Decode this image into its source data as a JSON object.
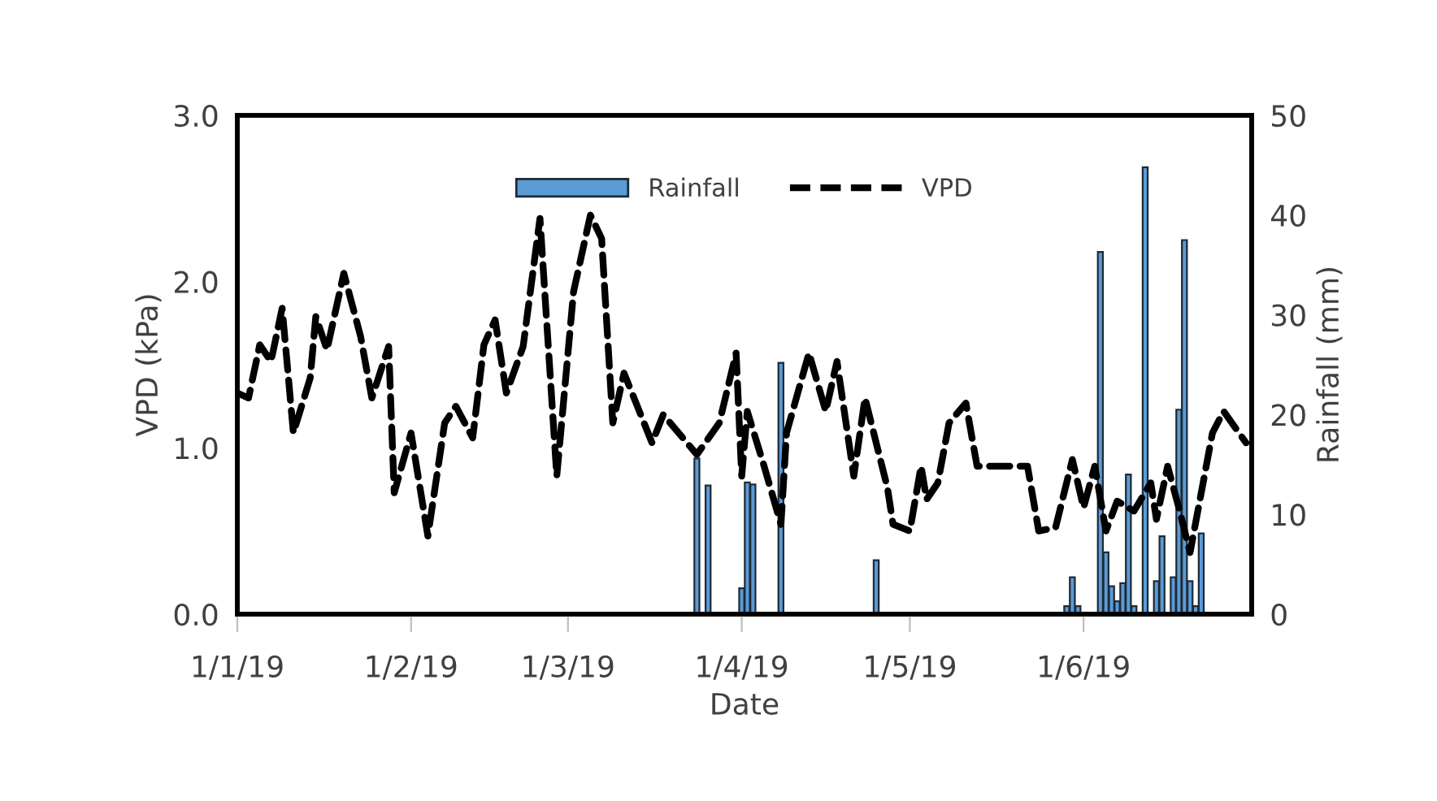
{
  "chart_data": {
    "type": "line",
    "xlabel": "Date",
    "ylabel": "VPD (kPa)",
    "y2label": "Rainfall (mm)",
    "xlim": [
      "2019-01-01",
      "2019-07-01"
    ],
    "xticks": [
      {
        "value": "2019-01-01",
        "label": "1/1/19"
      },
      {
        "value": "2019-02-01",
        "label": "1/2/19"
      },
      {
        "value": "2019-03-01",
        "label": "1/3/19"
      },
      {
        "value": "2019-04-01",
        "label": "1/4/19"
      },
      {
        "value": "2019-05-01",
        "label": "1/5/19"
      },
      {
        "value": "2019-06-01",
        "label": "1/6/19"
      }
    ],
    "ylim": [
      0,
      3
    ],
    "yticks": [
      {
        "value": 0,
        "label": "0.0"
      },
      {
        "value": 1,
        "label": "1.0"
      },
      {
        "value": 2,
        "label": "2.0"
      },
      {
        "value": 3,
        "label": "3.0"
      }
    ],
    "y2lim": [
      0,
      50
    ],
    "y2ticks": [
      0,
      10,
      20,
      30,
      40,
      50
    ],
    "grid": false,
    "legend": "top",
    "series": [
      {
        "name": "Rainfall",
        "type": "bar",
        "axis": "y2",
        "color": "#5b9bd5",
        "x": [
          "2019-03-24",
          "2019-03-26",
          "2019-04-01",
          "2019-04-02",
          "2019-04-03",
          "2019-04-08",
          "2019-04-25",
          "2019-05-29",
          "2019-05-30",
          "2019-05-31",
          "2019-06-04",
          "2019-06-05",
          "2019-06-06",
          "2019-06-07",
          "2019-06-08",
          "2019-06-09",
          "2019-06-10",
          "2019-06-12",
          "2019-06-14",
          "2019-06-15",
          "2019-06-17",
          "2019-06-18",
          "2019-06-19",
          "2019-06-20",
          "2019-06-21",
          "2019-06-22"
        ],
        "values": [
          15.6,
          12.9,
          2.6,
          13.2,
          13.0,
          25.2,
          5.4,
          0.8,
          3.7,
          0.8,
          36.3,
          6.2,
          2.8,
          1.3,
          3.1,
          14.0,
          0.8,
          44.8,
          3.3,
          7.8,
          3.7,
          20.5,
          37.5,
          3.3,
          0.8,
          8.1
        ]
      },
      {
        "name": "VPD",
        "axis": "y",
        "color": "#000000",
        "line_style": "dashed",
        "marker": "none",
        "x": [
          "2019-01-01",
          "2019-01-03",
          "2019-01-05",
          "2019-01-07",
          "2019-01-09",
          "2019-01-11",
          "2019-01-14",
          "2019-01-15",
          "2019-01-17",
          "2019-01-20",
          "2019-01-23",
          "2019-01-25",
          "2019-01-28",
          "2019-01-29",
          "2019-02-01",
          "2019-02-04",
          "2019-02-07",
          "2019-02-09",
          "2019-02-12",
          "2019-02-14",
          "2019-02-16",
          "2019-02-18",
          "2019-02-21",
          "2019-02-24",
          "2019-02-27",
          "2019-03-02",
          "2019-03-05",
          "2019-03-07",
          "2019-03-09",
          "2019-03-11",
          "2019-03-16",
          "2019-03-18",
          "2019-03-24",
          "2019-03-28",
          "2019-03-31",
          "2019-04-01",
          "2019-04-02",
          "2019-04-05",
          "2019-04-08",
          "2019-04-09",
          "2019-04-13",
          "2019-04-16",
          "2019-04-18",
          "2019-04-21",
          "2019-04-23",
          "2019-04-27",
          "2019-04-28",
          "2019-05-01",
          "2019-05-03",
          "2019-05-04",
          "2019-05-06",
          "2019-05-08",
          "2019-05-11",
          "2019-05-13",
          "2019-05-22",
          "2019-05-24",
          "2019-05-27",
          "2019-05-30",
          "2019-06-01",
          "2019-06-03",
          "2019-06-05",
          "2019-06-07",
          "2019-06-10",
          "2019-06-13",
          "2019-06-14",
          "2019-06-16",
          "2019-06-18",
          "2019-06-20",
          "2019-06-24",
          "2019-06-26",
          "2019-06-30"
        ],
        "values": [
          1.33,
          1.3,
          1.62,
          1.52,
          1.84,
          1.09,
          1.42,
          1.79,
          1.59,
          2.05,
          1.67,
          1.3,
          1.61,
          0.73,
          1.09,
          0.47,
          1.15,
          1.25,
          1.06,
          1.62,
          1.77,
          1.33,
          1.61,
          2.38,
          0.83,
          1.94,
          2.4,
          2.26,
          1.15,
          1.45,
          1.03,
          1.2,
          0.96,
          1.15,
          1.57,
          0.83,
          1.22,
          0.89,
          0.54,
          1.09,
          1.57,
          1.22,
          1.52,
          0.83,
          1.3,
          0.76,
          0.54,
          0.5,
          0.89,
          0.69,
          0.79,
          1.15,
          1.27,
          0.89,
          0.89,
          0.5,
          0.52,
          0.93,
          0.64,
          0.89,
          0.5,
          0.68,
          0.62,
          0.79,
          0.57,
          0.89,
          0.64,
          0.37,
          1.09,
          1.22,
          1.03
        ]
      }
    ]
  }
}
